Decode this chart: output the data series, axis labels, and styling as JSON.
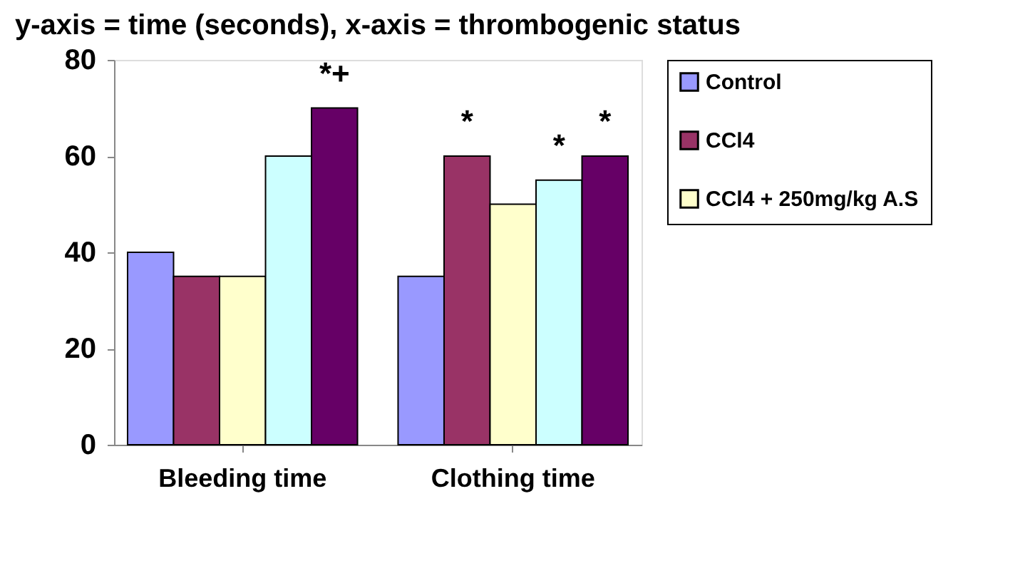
{
  "chart_data": {
    "type": "bar",
    "title": "y-axis = time (seconds), x-axis = thrombogenic status",
    "categories": [
      "Bleeding time",
      "Clothing time"
    ],
    "series": [
      {
        "name": "Control",
        "color": "#9999ff",
        "values": [
          40,
          35
        ]
      },
      {
        "name": "CCl4",
        "color": "#993366",
        "values": [
          35,
          60
        ],
        "value_labels": [
          null,
          "*"
        ]
      },
      {
        "name": "CCl4 + 250mg/kg A.S",
        "color": "#ffffcc",
        "values": [
          35,
          50
        ]
      },
      {
        "color": "#ccffff",
        "values": [
          60,
          55
        ],
        "value_labels": [
          null,
          "*"
        ]
      },
      {
        "color": "#660066",
        "values": [
          70,
          60
        ],
        "value_labels": [
          "*+",
          "*"
        ]
      }
    ],
    "ylim": [
      0,
      80
    ],
    "yticks": [
      0,
      20,
      40,
      60,
      80
    ],
    "grid": false,
    "legend": "right"
  }
}
